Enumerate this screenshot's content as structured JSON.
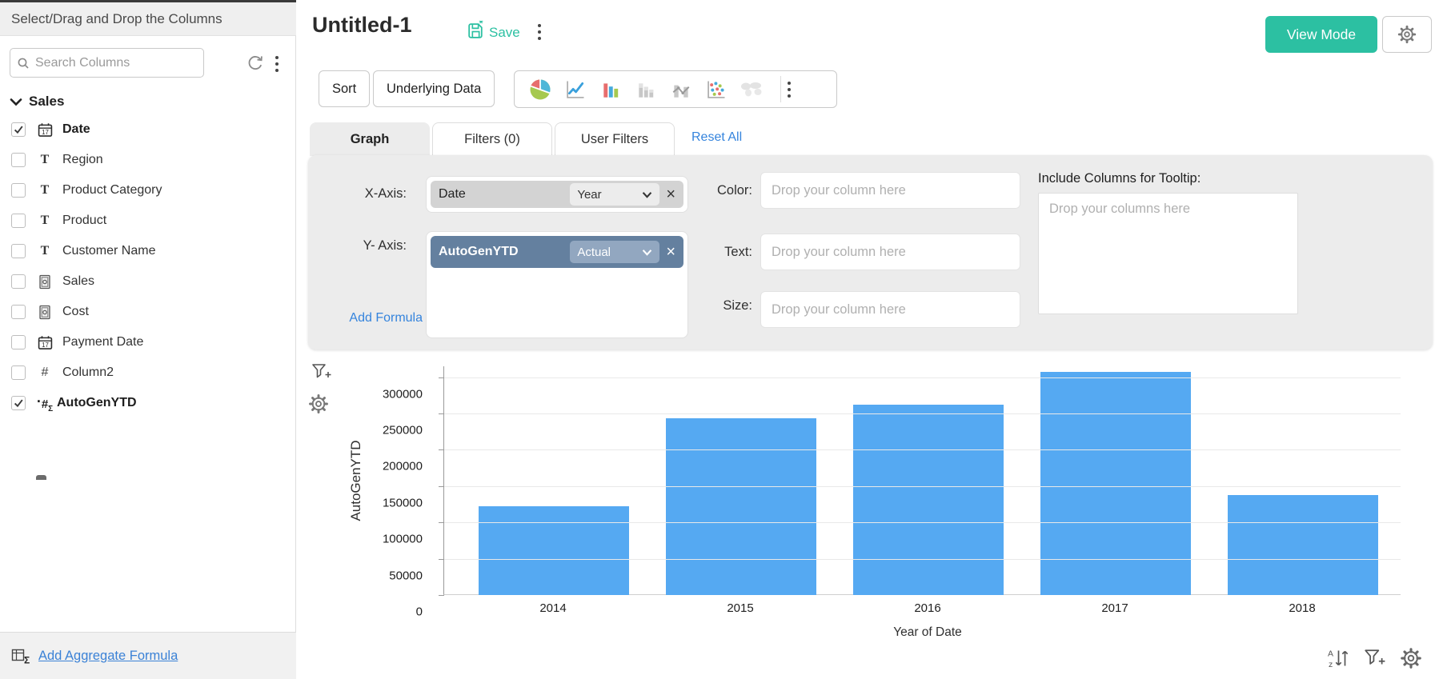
{
  "sidebar": {
    "title": "Select/Drag and Drop the Columns",
    "search_placeholder": "Search Columns",
    "group_label": "Sales",
    "items": [
      {
        "label": "Date",
        "icon": "calendar-icon",
        "checked": true,
        "bold": true
      },
      {
        "label": "Region",
        "icon": "text-icon",
        "checked": false,
        "bold": false
      },
      {
        "label": "Product Category",
        "icon": "text-icon",
        "checked": false,
        "bold": false
      },
      {
        "label": "Product",
        "icon": "text-icon",
        "checked": false,
        "bold": false
      },
      {
        "label": "Customer Name",
        "icon": "text-icon",
        "checked": false,
        "bold": false
      },
      {
        "label": "Sales",
        "icon": "currency-icon",
        "checked": false,
        "bold": false
      },
      {
        "label": "Cost",
        "icon": "currency-icon",
        "checked": false,
        "bold": false
      },
      {
        "label": "Payment Date",
        "icon": "calendar-icon",
        "checked": false,
        "bold": false
      },
      {
        "label": "Column2",
        "icon": "number-icon",
        "checked": false,
        "bold": false
      },
      {
        "label": "AutoGenYTD",
        "icon": "formula-icon",
        "checked": true,
        "bold": true
      }
    ],
    "footer_link": "Add Aggregate Formula"
  },
  "header": {
    "title": "Untitled-1",
    "save_label": "Save",
    "view_mode_label": "View Mode"
  },
  "toolbar": {
    "sort_label": "Sort",
    "underlying_data_label": "Underlying Data",
    "chart_types": [
      "pie-chart-icon",
      "line-chart-icon",
      "bar-chart-icon",
      "stacked-bar-icon",
      "bar-line-icon",
      "scatter-icon",
      "map-icon"
    ]
  },
  "tabs": {
    "graph": "Graph",
    "filters": "Filters (0)",
    "user_filters": "User Filters",
    "reset_all": "Reset All"
  },
  "config": {
    "x_axis_label": "X-Axis:",
    "x_column": "Date",
    "x_function": "Year",
    "y_axis_label": "Y- Axis:",
    "y_column": "AutoGenYTD",
    "y_aggregate": "Actual",
    "add_formula": "Add Formula",
    "color_label": "Color:",
    "text_label": "Text:",
    "size_label": "Size:",
    "drop_single_placeholder": "Drop your column here",
    "tooltip_heading": "Include Columns for Tooltip:",
    "drop_multi_placeholder": "Drop your columns here"
  },
  "chart_data": {
    "type": "bar",
    "categories": [
      "2014",
      "2015",
      "2016",
      "2017",
      "2018"
    ],
    "values": [
      122000,
      243000,
      262000,
      307000,
      138000
    ],
    "title": "",
    "xlabel": "Year of Date",
    "ylabel": "AutoGenYTD",
    "ylim": [
      0,
      315000
    ],
    "yticks": [
      0,
      50000,
      100000,
      150000,
      200000,
      250000,
      300000
    ],
    "bar_color": "#55a9f2",
    "grid": true,
    "legend": false
  },
  "colors": {
    "accent_teal": "#2cc0a2",
    "link_blue": "#3584dd",
    "bar_blue": "#55a9f2",
    "y_chip_blue": "#64809f",
    "panel_gray": "#ececec"
  }
}
